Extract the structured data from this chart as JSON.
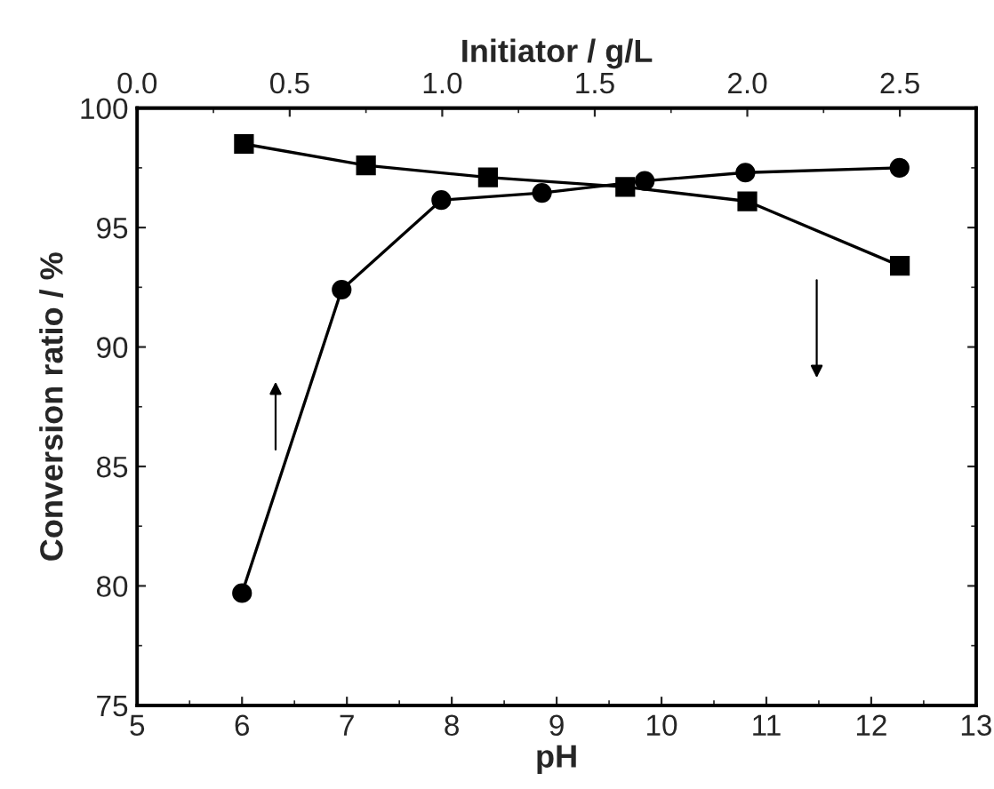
{
  "chart_data": {
    "type": "line",
    "xlabel": "pH",
    "x2label": "Initiator / g/L",
    "ylabel": "Conversion ratio / %",
    "xlim": [
      5,
      13
    ],
    "xticks": [
      5,
      6,
      7,
      8,
      9,
      10,
      11,
      12,
      13
    ],
    "x2lim": [
      0,
      2.75
    ],
    "x2ticks": [
      {
        "value": 0,
        "label": "0.0"
      },
      0.5,
      {
        "value": 1,
        "label": "1.0"
      },
      1.5,
      {
        "value": 2,
        "label": "2.0"
      },
      2.5
    ],
    "ylim": [
      75,
      100
    ],
    "yticks": [
      75,
      80,
      85,
      90,
      95,
      100
    ],
    "grid": false,
    "series": [
      {
        "color": "#000000",
        "marker": "circle",
        "x": [
          6,
          6.95,
          7.9,
          8.86,
          9.84,
          10.8,
          12.27
        ],
        "values": [
          79.7,
          92.4,
          96.15,
          96.45,
          96.95,
          97.3,
          97.5
        ]
      },
      {
        "color": "#000000",
        "marker": "square",
        "axis": "x2",
        "x": [
          0.35,
          0.75,
          1.15,
          1.6,
          2.0,
          2.5
        ],
        "values": [
          98.5,
          97.6,
          97.1,
          96.7,
          96.1,
          93.4
        ]
      }
    ]
  }
}
